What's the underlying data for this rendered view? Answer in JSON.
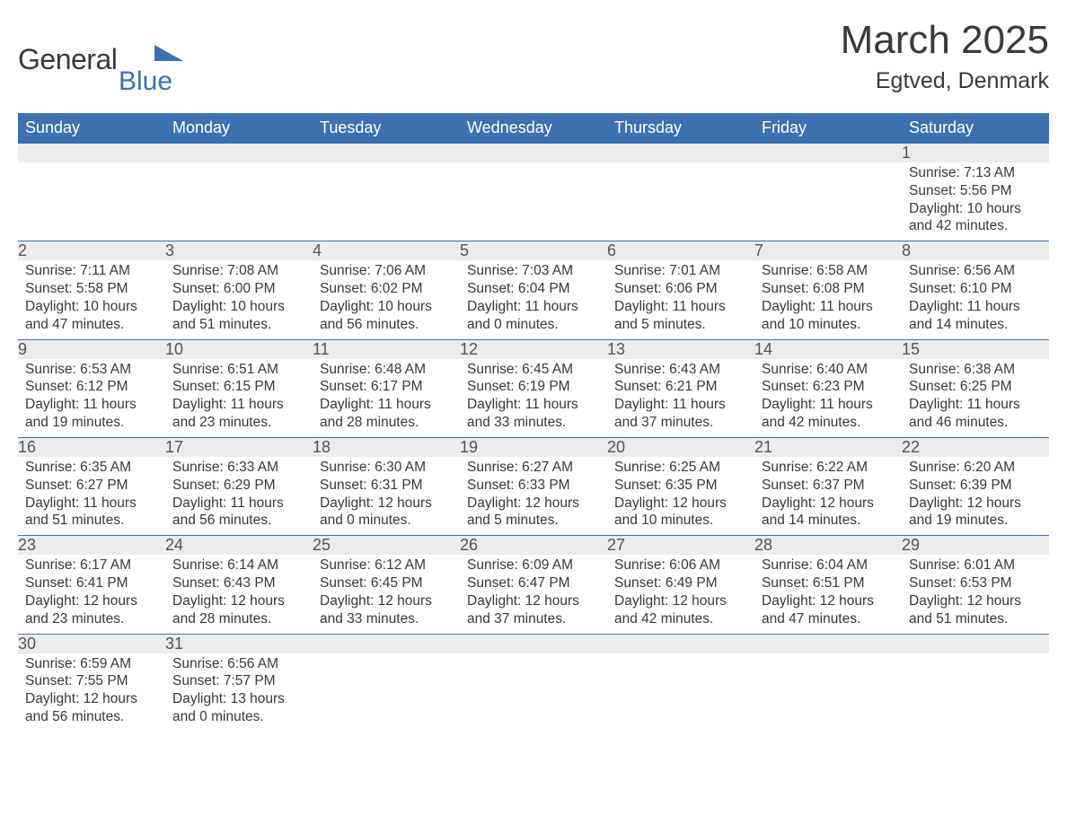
{
  "brand": {
    "word1": "General",
    "word2": "Blue"
  },
  "title": {
    "month": "March 2025",
    "location": "Egtved, Denmark"
  },
  "colors": {
    "header_bg": "#3b72b2",
    "header_text": "#ffffff",
    "daynum_bg": "#ececec",
    "row_border": "#3b72b2",
    "body_text": "#3a3a3a",
    "brand_blue": "#3b72b2"
  },
  "calendar": {
    "type": "table",
    "columns": [
      "Sunday",
      "Monday",
      "Tuesday",
      "Wednesday",
      "Thursday",
      "Friday",
      "Saturday"
    ],
    "weeks": [
      {
        "days": [
          null,
          null,
          null,
          null,
          null,
          null,
          {
            "n": "1",
            "sunrise": "Sunrise: 7:13 AM",
            "sunset": "Sunset: 5:56 PM",
            "daylight1": "Daylight: 10 hours",
            "daylight2": "and 42 minutes."
          }
        ]
      },
      {
        "days": [
          {
            "n": "2",
            "sunrise": "Sunrise: 7:11 AM",
            "sunset": "Sunset: 5:58 PM",
            "daylight1": "Daylight: 10 hours",
            "daylight2": "and 47 minutes."
          },
          {
            "n": "3",
            "sunrise": "Sunrise: 7:08 AM",
            "sunset": "Sunset: 6:00 PM",
            "daylight1": "Daylight: 10 hours",
            "daylight2": "and 51 minutes."
          },
          {
            "n": "4",
            "sunrise": "Sunrise: 7:06 AM",
            "sunset": "Sunset: 6:02 PM",
            "daylight1": "Daylight: 10 hours",
            "daylight2": "and 56 minutes."
          },
          {
            "n": "5",
            "sunrise": "Sunrise: 7:03 AM",
            "sunset": "Sunset: 6:04 PM",
            "daylight1": "Daylight: 11 hours",
            "daylight2": "and 0 minutes."
          },
          {
            "n": "6",
            "sunrise": "Sunrise: 7:01 AM",
            "sunset": "Sunset: 6:06 PM",
            "daylight1": "Daylight: 11 hours",
            "daylight2": "and 5 minutes."
          },
          {
            "n": "7",
            "sunrise": "Sunrise: 6:58 AM",
            "sunset": "Sunset: 6:08 PM",
            "daylight1": "Daylight: 11 hours",
            "daylight2": "and 10 minutes."
          },
          {
            "n": "8",
            "sunrise": "Sunrise: 6:56 AM",
            "sunset": "Sunset: 6:10 PM",
            "daylight1": "Daylight: 11 hours",
            "daylight2": "and 14 minutes."
          }
        ]
      },
      {
        "days": [
          {
            "n": "9",
            "sunrise": "Sunrise: 6:53 AM",
            "sunset": "Sunset: 6:12 PM",
            "daylight1": "Daylight: 11 hours",
            "daylight2": "and 19 minutes."
          },
          {
            "n": "10",
            "sunrise": "Sunrise: 6:51 AM",
            "sunset": "Sunset: 6:15 PM",
            "daylight1": "Daylight: 11 hours",
            "daylight2": "and 23 minutes."
          },
          {
            "n": "11",
            "sunrise": "Sunrise: 6:48 AM",
            "sunset": "Sunset: 6:17 PM",
            "daylight1": "Daylight: 11 hours",
            "daylight2": "and 28 minutes."
          },
          {
            "n": "12",
            "sunrise": "Sunrise: 6:45 AM",
            "sunset": "Sunset: 6:19 PM",
            "daylight1": "Daylight: 11 hours",
            "daylight2": "and 33 minutes."
          },
          {
            "n": "13",
            "sunrise": "Sunrise: 6:43 AM",
            "sunset": "Sunset: 6:21 PM",
            "daylight1": "Daylight: 11 hours",
            "daylight2": "and 37 minutes."
          },
          {
            "n": "14",
            "sunrise": "Sunrise: 6:40 AM",
            "sunset": "Sunset: 6:23 PM",
            "daylight1": "Daylight: 11 hours",
            "daylight2": "and 42 minutes."
          },
          {
            "n": "15",
            "sunrise": "Sunrise: 6:38 AM",
            "sunset": "Sunset: 6:25 PM",
            "daylight1": "Daylight: 11 hours",
            "daylight2": "and 46 minutes."
          }
        ]
      },
      {
        "days": [
          {
            "n": "16",
            "sunrise": "Sunrise: 6:35 AM",
            "sunset": "Sunset: 6:27 PM",
            "daylight1": "Daylight: 11 hours",
            "daylight2": "and 51 minutes."
          },
          {
            "n": "17",
            "sunrise": "Sunrise: 6:33 AM",
            "sunset": "Sunset: 6:29 PM",
            "daylight1": "Daylight: 11 hours",
            "daylight2": "and 56 minutes."
          },
          {
            "n": "18",
            "sunrise": "Sunrise: 6:30 AM",
            "sunset": "Sunset: 6:31 PM",
            "daylight1": "Daylight: 12 hours",
            "daylight2": "and 0 minutes."
          },
          {
            "n": "19",
            "sunrise": "Sunrise: 6:27 AM",
            "sunset": "Sunset: 6:33 PM",
            "daylight1": "Daylight: 12 hours",
            "daylight2": "and 5 minutes."
          },
          {
            "n": "20",
            "sunrise": "Sunrise: 6:25 AM",
            "sunset": "Sunset: 6:35 PM",
            "daylight1": "Daylight: 12 hours",
            "daylight2": "and 10 minutes."
          },
          {
            "n": "21",
            "sunrise": "Sunrise: 6:22 AM",
            "sunset": "Sunset: 6:37 PM",
            "daylight1": "Daylight: 12 hours",
            "daylight2": "and 14 minutes."
          },
          {
            "n": "22",
            "sunrise": "Sunrise: 6:20 AM",
            "sunset": "Sunset: 6:39 PM",
            "daylight1": "Daylight: 12 hours",
            "daylight2": "and 19 minutes."
          }
        ]
      },
      {
        "days": [
          {
            "n": "23",
            "sunrise": "Sunrise: 6:17 AM",
            "sunset": "Sunset: 6:41 PM",
            "daylight1": "Daylight: 12 hours",
            "daylight2": "and 23 minutes."
          },
          {
            "n": "24",
            "sunrise": "Sunrise: 6:14 AM",
            "sunset": "Sunset: 6:43 PM",
            "daylight1": "Daylight: 12 hours",
            "daylight2": "and 28 minutes."
          },
          {
            "n": "25",
            "sunrise": "Sunrise: 6:12 AM",
            "sunset": "Sunset: 6:45 PM",
            "daylight1": "Daylight: 12 hours",
            "daylight2": "and 33 minutes."
          },
          {
            "n": "26",
            "sunrise": "Sunrise: 6:09 AM",
            "sunset": "Sunset: 6:47 PM",
            "daylight1": "Daylight: 12 hours",
            "daylight2": "and 37 minutes."
          },
          {
            "n": "27",
            "sunrise": "Sunrise: 6:06 AM",
            "sunset": "Sunset: 6:49 PM",
            "daylight1": "Daylight: 12 hours",
            "daylight2": "and 42 minutes."
          },
          {
            "n": "28",
            "sunrise": "Sunrise: 6:04 AM",
            "sunset": "Sunset: 6:51 PM",
            "daylight1": "Daylight: 12 hours",
            "daylight2": "and 47 minutes."
          },
          {
            "n": "29",
            "sunrise": "Sunrise: 6:01 AM",
            "sunset": "Sunset: 6:53 PM",
            "daylight1": "Daylight: 12 hours",
            "daylight2": "and 51 minutes."
          }
        ]
      },
      {
        "days": [
          {
            "n": "30",
            "sunrise": "Sunrise: 6:59 AM",
            "sunset": "Sunset: 7:55 PM",
            "daylight1": "Daylight: 12 hours",
            "daylight2": "and 56 minutes."
          },
          {
            "n": "31",
            "sunrise": "Sunrise: 6:56 AM",
            "sunset": "Sunset: 7:57 PM",
            "daylight1": "Daylight: 13 hours",
            "daylight2": "and 0 minutes."
          },
          null,
          null,
          null,
          null,
          null
        ]
      }
    ]
  }
}
